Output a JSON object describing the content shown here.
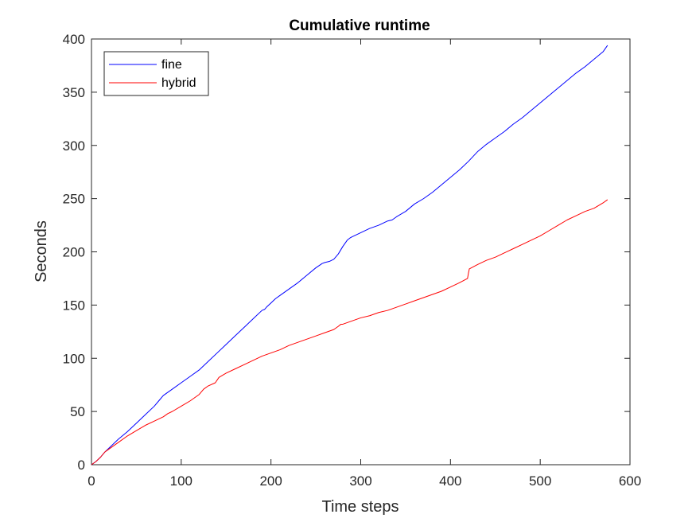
{
  "chart_data": {
    "type": "line",
    "title": "Cumulative runtime",
    "xlabel": "Time steps",
    "ylabel": "Seconds",
    "xlim": [
      0,
      600
    ],
    "ylim": [
      0,
      400
    ],
    "xticks": [
      0,
      100,
      200,
      300,
      400,
      500,
      600
    ],
    "yticks": [
      0,
      50,
      100,
      150,
      200,
      250,
      300,
      350,
      400
    ],
    "grid": false,
    "legend_position": "top-left",
    "series": [
      {
        "name": "fine",
        "color": "#0000ff",
        "x": [
          0,
          5,
          10,
          15,
          20,
          30,
          40,
          50,
          60,
          70,
          75,
          80,
          85,
          90,
          100,
          110,
          120,
          125,
          130,
          140,
          150,
          160,
          170,
          180,
          190,
          193,
          195,
          200,
          205,
          210,
          220,
          230,
          240,
          250,
          257,
          260,
          265,
          270,
          275,
          280,
          285,
          288,
          290,
          300,
          310,
          320,
          330,
          335,
          340,
          350,
          360,
          370,
          380,
          390,
          400,
          410,
          420,
          430,
          440,
          450,
          460,
          470,
          480,
          490,
          500,
          510,
          520,
          530,
          540,
          550,
          560,
          570,
          575
        ],
        "y": [
          0,
          3,
          7,
          12,
          16,
          24,
          31,
          39,
          47,
          55,
          60,
          65,
          68,
          71,
          77,
          83,
          89,
          93,
          97,
          105,
          113,
          121,
          129,
          137,
          145,
          146,
          148,
          152,
          156,
          159,
          165,
          171,
          178,
          185,
          189,
          190,
          191,
          193,
          198,
          205,
          211,
          213,
          214,
          218,
          222,
          225,
          229,
          230,
          233,
          238,
          245,
          250,
          256,
          263,
          270,
          277,
          285,
          294,
          301,
          307,
          313,
          320,
          326,
          333,
          340,
          347,
          354,
          361,
          368,
          374,
          381,
          388,
          394
        ]
      },
      {
        "name": "hybrid",
        "color": "#ff0000",
        "x": [
          0,
          5,
          10,
          15,
          20,
          30,
          40,
          50,
          60,
          70,
          80,
          85,
          90,
          100,
          110,
          120,
          125,
          130,
          138,
          142,
          150,
          160,
          170,
          180,
          190,
          200,
          210,
          220,
          230,
          240,
          250,
          260,
          270,
          275,
          278,
          280,
          290,
          300,
          310,
          320,
          330,
          340,
          350,
          360,
          370,
          380,
          390,
          400,
          410,
          419,
          420,
          421,
          430,
          440,
          450,
          460,
          470,
          480,
          490,
          500,
          510,
          520,
          530,
          540,
          550,
          560,
          570,
          575
        ],
        "y": [
          0,
          3,
          7,
          12,
          15,
          21,
          27,
          32,
          37,
          41,
          45,
          48,
          50,
          55,
          60,
          66,
          71,
          74,
          77,
          82,
          86,
          90,
          94,
          98,
          102,
          105,
          108,
          112,
          115,
          118,
          121,
          124,
          127,
          130,
          132,
          132,
          135,
          138,
          140,
          143,
          145,
          148,
          151,
          154,
          157,
          160,
          163,
          167,
          171,
          175,
          180,
          184,
          188,
          192,
          195,
          199,
          203,
          207,
          211,
          215,
          220,
          225,
          230,
          234,
          238,
          241,
          246,
          249
        ]
      }
    ]
  }
}
